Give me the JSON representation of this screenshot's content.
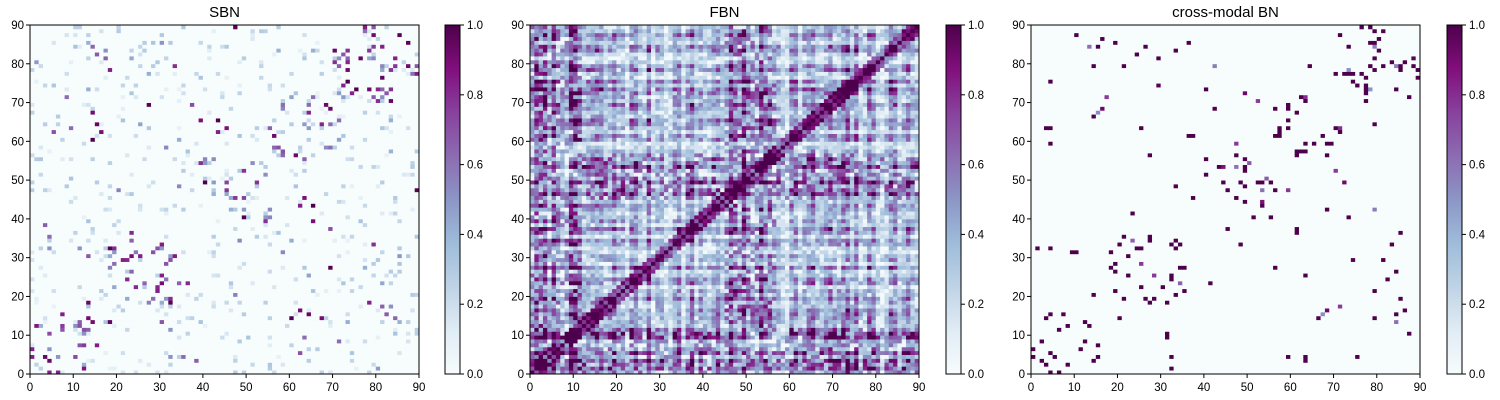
{
  "chart_data": [
    {
      "type": "heatmap",
      "title": "SBN",
      "xlabel": "",
      "ylabel": "",
      "size": 90,
      "xlim": [
        0,
        90
      ],
      "ylim": [
        0,
        90
      ],
      "xticks": [
        0,
        10,
        20,
        30,
        40,
        50,
        60,
        70,
        80,
        90
      ],
      "yticks": [
        0,
        10,
        20,
        30,
        40,
        50,
        60,
        70,
        80,
        90
      ],
      "colorbar": {
        "range": [
          0.0,
          1.0
        ],
        "ticks": [
          "0.0",
          "0.2",
          "0.4",
          "0.6",
          "0.8",
          "1.0"
        ]
      },
      "colormap": "BuPu",
      "pattern": "sparse structural connections concentrated near diagonal blocks (0-15, 20-35, 40-55, 55-90)",
      "density": 0.05,
      "seed": 11
    },
    {
      "type": "heatmap",
      "title": "FBN",
      "xlabel": "",
      "ylabel": "",
      "size": 90,
      "xlim": [
        0,
        90
      ],
      "ylim": [
        0,
        90
      ],
      "xticks": [
        0,
        10,
        20,
        30,
        40,
        50,
        60,
        70,
        80,
        90
      ],
      "yticks": [
        0,
        10,
        20,
        30,
        40,
        50,
        60,
        70,
        80,
        90
      ],
      "colorbar": {
        "range": [
          0.0,
          1.0
        ],
        "ticks": [
          "0.0",
          "0.2",
          "0.4",
          "0.6",
          "0.8",
          "1.0"
        ]
      },
      "colormap": "BuPu",
      "pattern": "dense functional connectivity with strong diagonal and block structure",
      "density": 1.0,
      "seed": 7
    },
    {
      "type": "heatmap",
      "title": "cross-modal BN",
      "xlabel": "",
      "ylabel": "",
      "size": 90,
      "xlim": [
        0,
        90
      ],
      "ylim": [
        0,
        90
      ],
      "xticks": [
        0,
        10,
        20,
        30,
        40,
        50,
        60,
        70,
        80,
        90
      ],
      "yticks": [
        0,
        10,
        20,
        30,
        40,
        50,
        60,
        70,
        80,
        90
      ],
      "colorbar": {
        "range": [
          0.0,
          1.0
        ],
        "ticks": [
          "0.0",
          "0.2",
          "0.4",
          "0.6",
          "0.8",
          "1.0"
        ]
      },
      "colormap": "BuPu",
      "pattern": "sparse, near-binary connections following the structural network",
      "density": 0.04,
      "seed": 11
    }
  ],
  "colors": {
    "background": "#ffffff",
    "cmap_low": "#f7fcfd",
    "cmap_mid": "#8c96c6",
    "cmap_high": "#4d004b"
  }
}
